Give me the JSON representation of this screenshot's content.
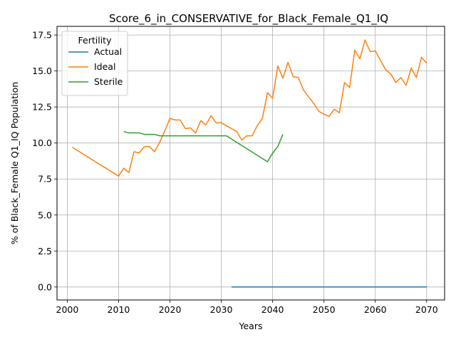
{
  "chart_data": {
    "type": "line",
    "title": "Score_6_in_CONSERVATIVE_for_Black_Female_Q1_IQ",
    "xlabel": "Years",
    "ylabel": "% of Black_Female Q1_IQ Population",
    "xlim": [
      1998,
      2073.5
    ],
    "ylim": [
      -0.9,
      18.1
    ],
    "xticks": [
      2000,
      2010,
      2020,
      2030,
      2040,
      2050,
      2060,
      2070
    ],
    "yticks": [
      0.0,
      2.5,
      5.0,
      7.5,
      10.0,
      12.5,
      15.0,
      17.5
    ],
    "xtick_labels": [
      "2000",
      "2010",
      "2020",
      "2030",
      "2040",
      "2050",
      "2060",
      "2070"
    ],
    "ytick_labels": [
      "0.0",
      "2.5",
      "5.0",
      "7.5",
      "10.0",
      "12.5",
      "15.0",
      "17.5"
    ],
    "grid": true,
    "legend": {
      "title": "Fertility",
      "placement": "top-left"
    },
    "series": [
      {
        "name": "Actual",
        "color": "#1f77b4",
        "x": [
          2032,
          2070
        ],
        "y": [
          0.0,
          0.0
        ]
      },
      {
        "name": "Ideal",
        "color": "#ff7f0e",
        "x": [
          2001,
          2010,
          2011,
          2012,
          2013,
          2014,
          2015,
          2016,
          2017,
          2018,
          2019,
          2020,
          2021,
          2022,
          2023,
          2024,
          2025,
          2026,
          2027,
          2028,
          2029,
          2030,
          2031,
          2032,
          2033,
          2034,
          2035,
          2036,
          2037,
          2038,
          2039,
          2040,
          2041,
          2042,
          2043,
          2044,
          2045,
          2046,
          2047,
          2048,
          2049,
          2050,
          2051,
          2052,
          2053,
          2054,
          2055,
          2056,
          2057,
          2058,
          2059,
          2060,
          2061,
          2062,
          2063,
          2064,
          2065,
          2066,
          2067,
          2068,
          2069,
          2070
        ],
        "y": [
          9.7,
          7.7,
          8.25,
          7.95,
          9.4,
          9.3,
          9.75,
          9.75,
          9.4,
          10.05,
          10.85,
          11.7,
          11.6,
          11.6,
          11.0,
          11.05,
          10.7,
          11.55,
          11.25,
          11.9,
          11.4,
          11.4,
          11.2,
          11.0,
          10.8,
          10.2,
          10.5,
          10.5,
          11.2,
          11.7,
          13.5,
          13.1,
          15.35,
          14.5,
          15.6,
          14.6,
          14.55,
          13.7,
          13.2,
          12.75,
          12.2,
          12.0,
          11.85,
          12.35,
          12.1,
          14.2,
          13.85,
          16.45,
          15.85,
          17.15,
          16.35,
          16.4,
          15.75,
          15.1,
          14.8,
          14.2,
          14.55,
          14.0,
          15.2,
          14.55,
          15.95,
          15.55
        ]
      },
      {
        "name": "Sterile",
        "color": "#2ca02c",
        "x": [
          2011,
          2012,
          2013,
          2014,
          2015,
          2016,
          2017,
          2018,
          2019,
          2020,
          2021,
          2022,
          2023,
          2024,
          2025,
          2026,
          2027,
          2028,
          2029,
          2030,
          2031,
          2039,
          2040,
          2041,
          2042
        ],
        "y": [
          10.8,
          10.7,
          10.7,
          10.7,
          10.6,
          10.6,
          10.6,
          10.5,
          10.5,
          10.5,
          10.5,
          10.5,
          10.5,
          10.5,
          10.5,
          10.5,
          10.5,
          10.5,
          10.5,
          10.5,
          10.5,
          8.7,
          9.3,
          9.75,
          10.6
        ]
      }
    ]
  }
}
